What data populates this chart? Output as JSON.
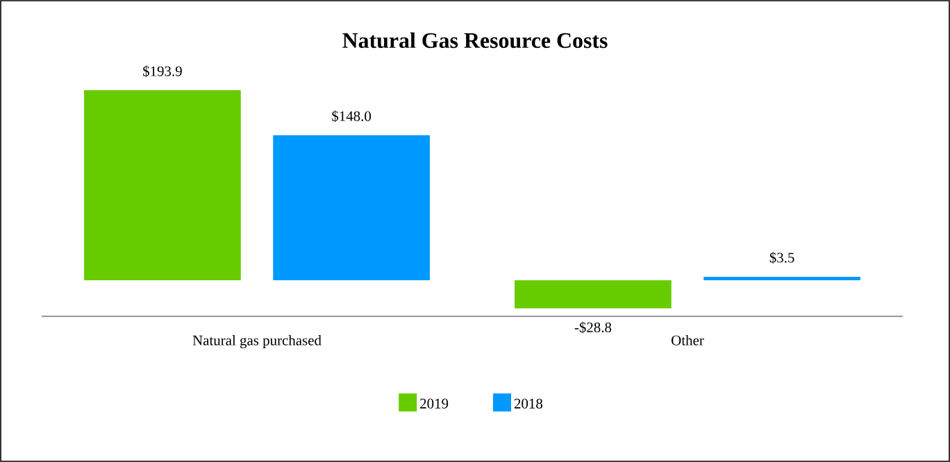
{
  "chart_data": {
    "type": "bar",
    "title": "Natural Gas Resource Costs",
    "categories": [
      "Natural gas purchased",
      "Other"
    ],
    "series": [
      {
        "name": "2019",
        "color": "#66cc00",
        "values": [
          193.9,
          -28.8
        ],
        "value_labels": [
          "$193.9",
          "-$28.8"
        ]
      },
      {
        "name": "2018",
        "color": "#0099ff",
        "values": [
          148.0,
          3.5
        ],
        "value_labels": [
          "$148.0",
          "$3.5"
        ]
      }
    ],
    "legend": "bottom"
  }
}
